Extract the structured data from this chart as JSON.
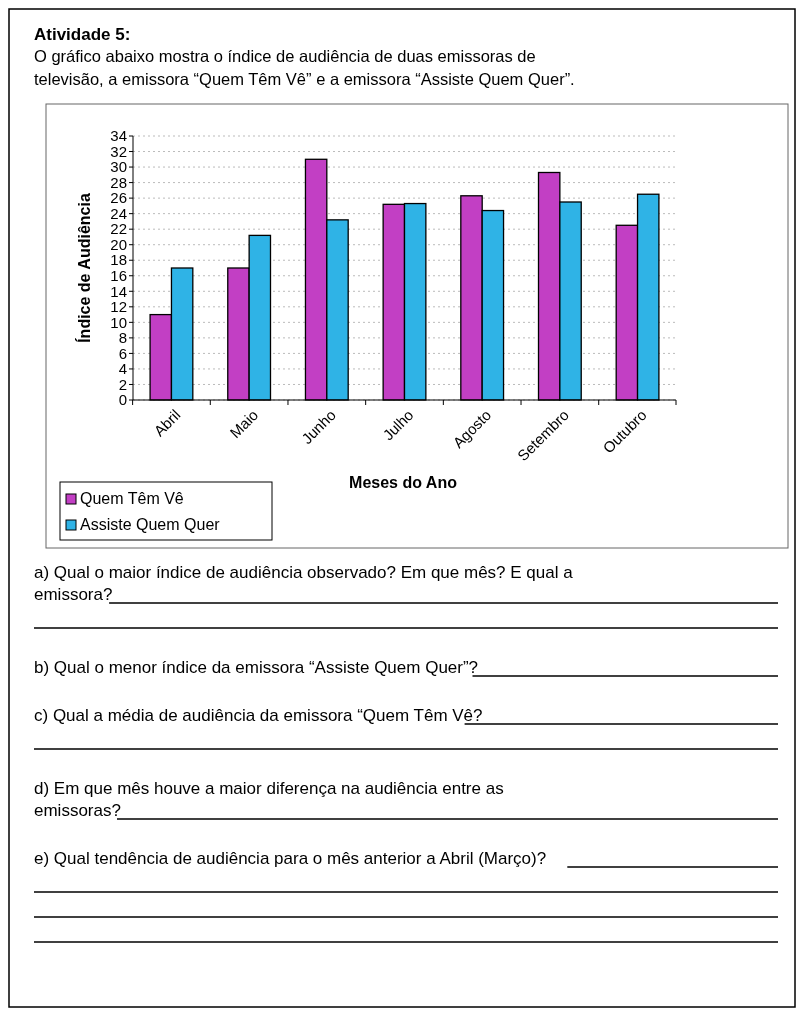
{
  "chart_data": {
    "type": "bar",
    "title": "Atividade 5:",
    "subtitle": "O gráfico abaixo mostra o índice de audiência de duas emissoras de televisão, a emissora “Quem Têm Vê” e a emissora “Assiste Quem Quer”.",
    "xlabel": "Meses do Ano",
    "ylabel": "Índice de Audiência",
    "categories": [
      "Abril",
      "Maio",
      "Junho",
      "Julho",
      "Agosto",
      "Setembro",
      "Outubro"
    ],
    "series": [
      {
        "name": "Quem Têm Vê",
        "color": "#c23fc4",
        "values": [
          11,
          17,
          31,
          25.2,
          26.3,
          29.3,
          22.5
        ]
      },
      {
        "name": "Assiste Quem Quer",
        "color": "#2fb3e6",
        "values": [
          17,
          21.2,
          23.2,
          25.3,
          24.4,
          25.5,
          26.5
        ]
      }
    ],
    "ylim": [
      0,
      34
    ],
    "yticks": [
      0,
      2,
      4,
      6,
      8,
      10,
      12,
      14,
      16,
      18,
      20,
      22,
      24,
      26,
      28,
      30,
      32,
      34
    ],
    "grid": "y",
    "legend": "bottom left",
    "annotations": [
      "a) Qual o maior índice de audiência observado? Em que mês? E qual a emissora?",
      "b) Qual o menor índice da emissora “Assiste Quem Quer”?",
      "c) Qual a média de audiência da emissora “Quem Têm Vê?",
      "d) Em que mês houve a maior diferença na audiência entre as emissoras?",
      "e) Qual tendência de audiência para o mês anterior a Abril (Março)?"
    ]
  }
}
